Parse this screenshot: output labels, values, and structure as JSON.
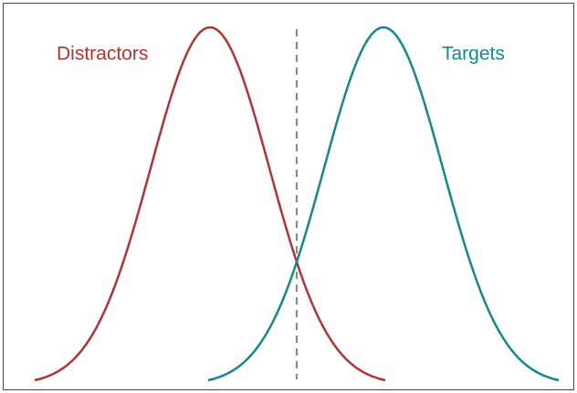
{
  "labels": {
    "distractors": "Distractors",
    "targets": "Targets"
  }
}
